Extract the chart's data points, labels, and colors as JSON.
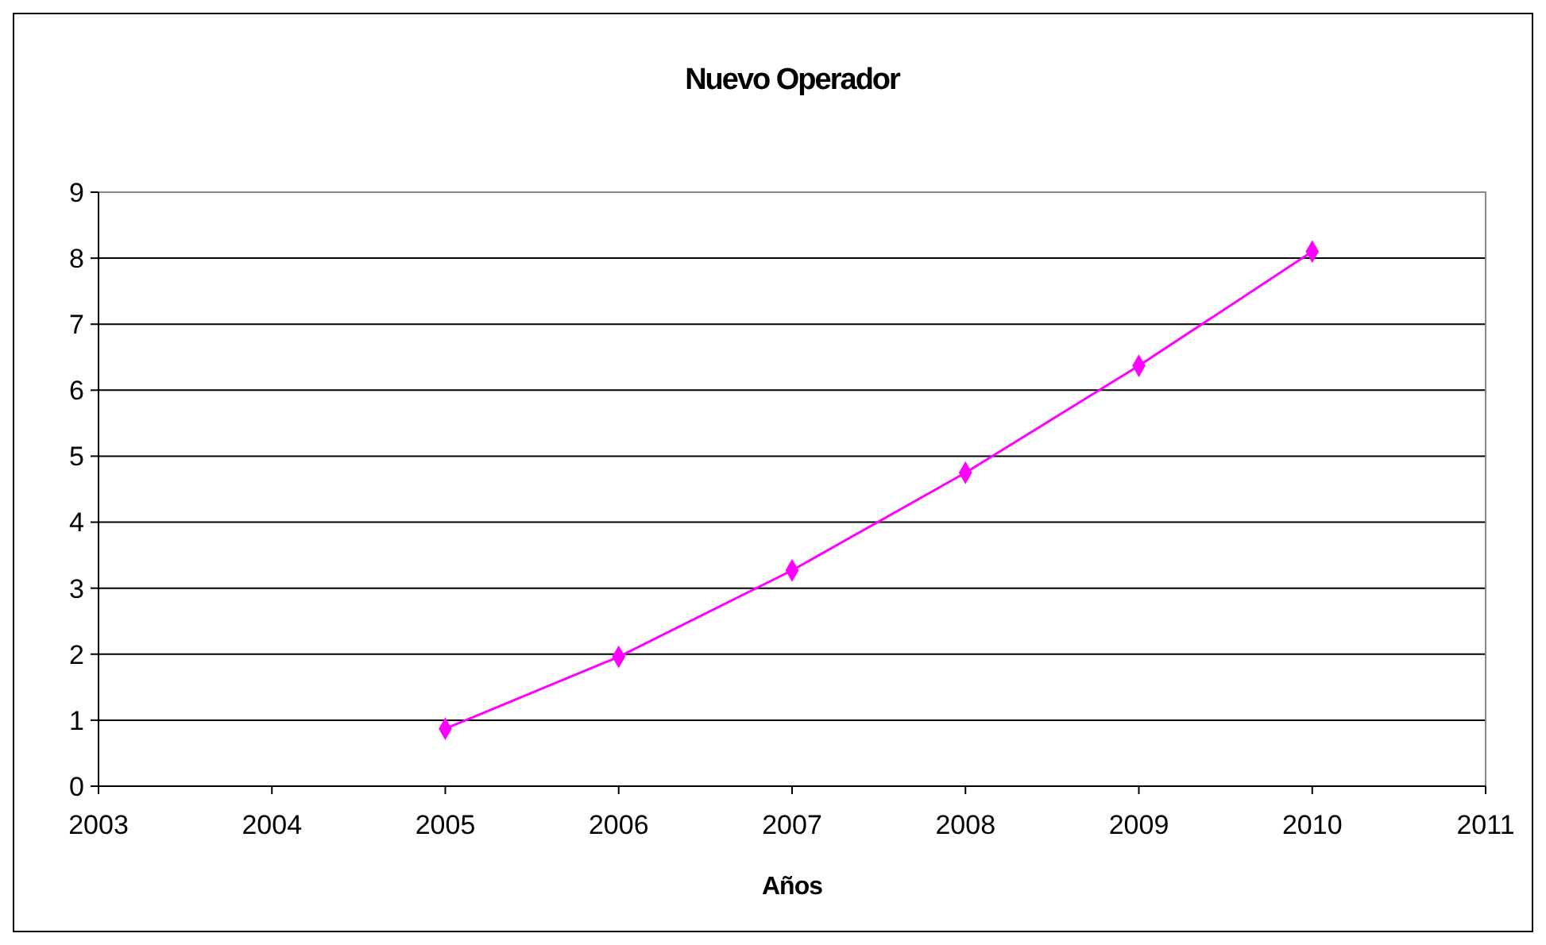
{
  "chart_data": {
    "type": "line",
    "title": "Nuevo Operador",
    "xlabel": "Años",
    "x": [
      2005,
      2006,
      2007,
      2008,
      2009,
      2010
    ],
    "series": [
      {
        "color": "#ff00ff",
        "values": [
          0.87,
          1.96,
          3.27,
          4.75,
          6.37,
          8.1
        ]
      }
    ],
    "xlim": [
      2003,
      2011
    ],
    "xticks": [
      2003,
      2004,
      2005,
      2006,
      2007,
      2008,
      2009,
      2010,
      2011
    ],
    "ylim": [
      0,
      9
    ],
    "yticks": [
      0,
      1,
      2,
      3,
      4,
      5,
      6,
      7,
      8,
      9
    ],
    "grid": "y",
    "marker": "diamond",
    "line_style": "solid"
  }
}
